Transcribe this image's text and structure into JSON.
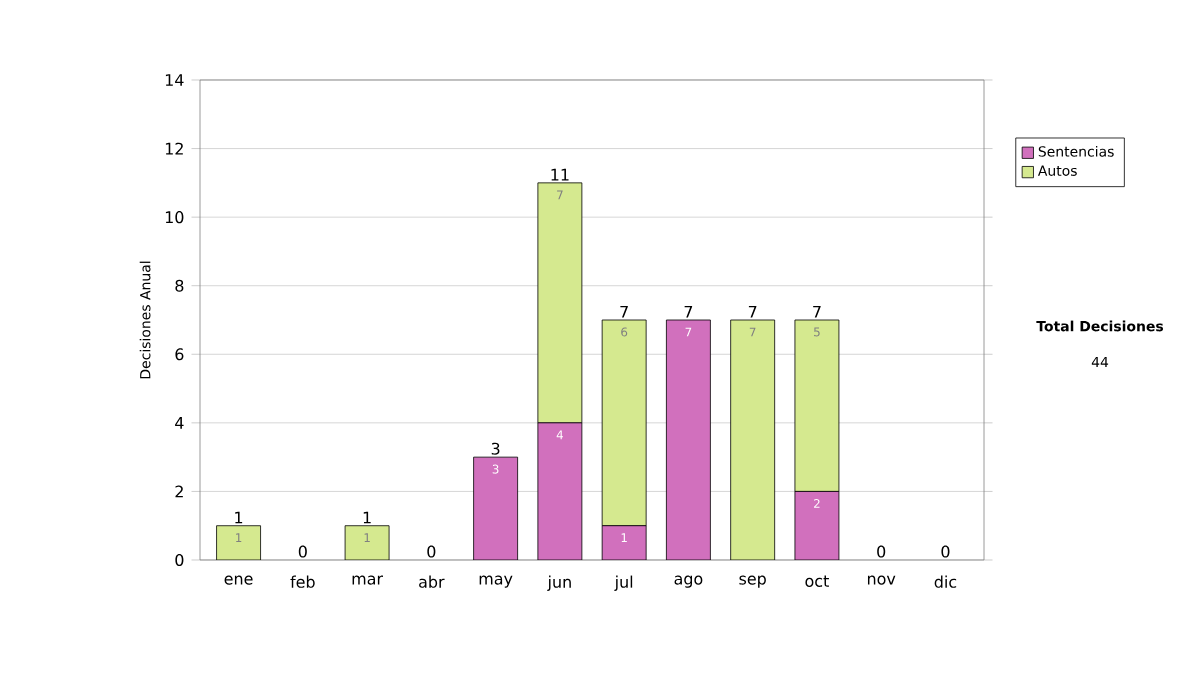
{
  "chart_data": {
    "type": "bar",
    "stacked": true,
    "categories": [
      "ene",
      "feb",
      "mar",
      "abr",
      "may",
      "jun",
      "jul",
      "ago",
      "sep",
      "oct",
      "nov",
      "dic"
    ],
    "ylabel": "Decisiones Anual",
    "series": [
      {
        "name": "Sentencias",
        "color": "#d170bd",
        "values": [
          0,
          0,
          0,
          0,
          3,
          4,
          1,
          7,
          0,
          2,
          0,
          0
        ],
        "value_labels": [
          null,
          null,
          null,
          null,
          "3",
          "4",
          "1",
          "7",
          null,
          "2",
          null,
          null
        ]
      },
      {
        "name": "Autos",
        "color": "#d5e98f",
        "values": [
          1,
          0,
          1,
          0,
          0,
          7,
          6,
          0,
          7,
          5,
          0,
          0
        ],
        "value_labels": [
          "1",
          null,
          "1",
          null,
          null,
          "7",
          "6",
          null,
          "7",
          "5",
          null,
          null
        ]
      }
    ],
    "totals": [
      "1",
      "0",
      "1",
      "0",
      "3",
      "11",
      "7",
      "7",
      "7",
      "7",
      "0",
      "0"
    ],
    "ylim": [
      0,
      14
    ],
    "yticks": [
      0,
      2,
      4,
      6,
      8,
      10,
      12,
      14
    ],
    "grid": "y",
    "legend": "right",
    "annotations": [
      "Total Decisiones",
      "44"
    ]
  }
}
